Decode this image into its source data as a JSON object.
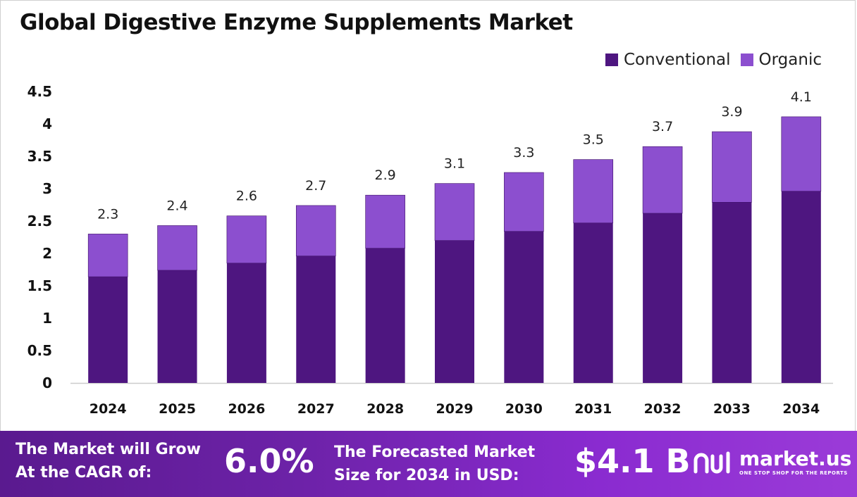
{
  "title": "Global Digestive Enzyme Supplements Market",
  "colors": {
    "conventional": "#4e1680",
    "organic": "#8c4fcf",
    "axis_line": "#cccccc",
    "text": "#222222"
  },
  "chart_data": {
    "type": "bar",
    "stacked": true,
    "categories": [
      "2024",
      "2025",
      "2026",
      "2027",
      "2028",
      "2029",
      "2030",
      "2031",
      "2032",
      "2033",
      "2034"
    ],
    "series": [
      {
        "name": "Conventional",
        "values": [
          1.64,
          1.74,
          1.85,
          1.96,
          2.08,
          2.2,
          2.34,
          2.47,
          2.62,
          2.79,
          2.96
        ]
      },
      {
        "name": "Organic",
        "values": [
          0.66,
          0.69,
          0.73,
          0.78,
          0.82,
          0.88,
          0.91,
          0.98,
          1.03,
          1.09,
          1.15
        ]
      }
    ],
    "total_labels": [
      "2.3",
      "2.4",
      "2.6",
      "2.7",
      "2.9",
      "3.1",
      "3.3",
      "3.5",
      "3.7",
      "3.9",
      "4.1"
    ],
    "y_ticks": [
      "0",
      "0.5",
      "1",
      "1.5",
      "2",
      "2.5",
      "3",
      "3.5",
      "4",
      "4.5"
    ],
    "ylim": [
      0,
      4.5
    ],
    "grid": false,
    "legend_position": "top-right"
  },
  "legend": {
    "conventional_label": "Conventional",
    "organic_label": "Organic"
  },
  "footer": {
    "cagr_label_line1": "The Market will Grow",
    "cagr_label_line2": "At the CAGR of:",
    "cagr_value": "6.0%",
    "size_label_line1": "The Forecasted Market",
    "size_label_line2": "Size for 2034 in USD:",
    "size_value": "$4.1 B",
    "logo_name": "market.us",
    "logo_tagline": "ONE STOP SHOP FOR THE REPORTS"
  }
}
